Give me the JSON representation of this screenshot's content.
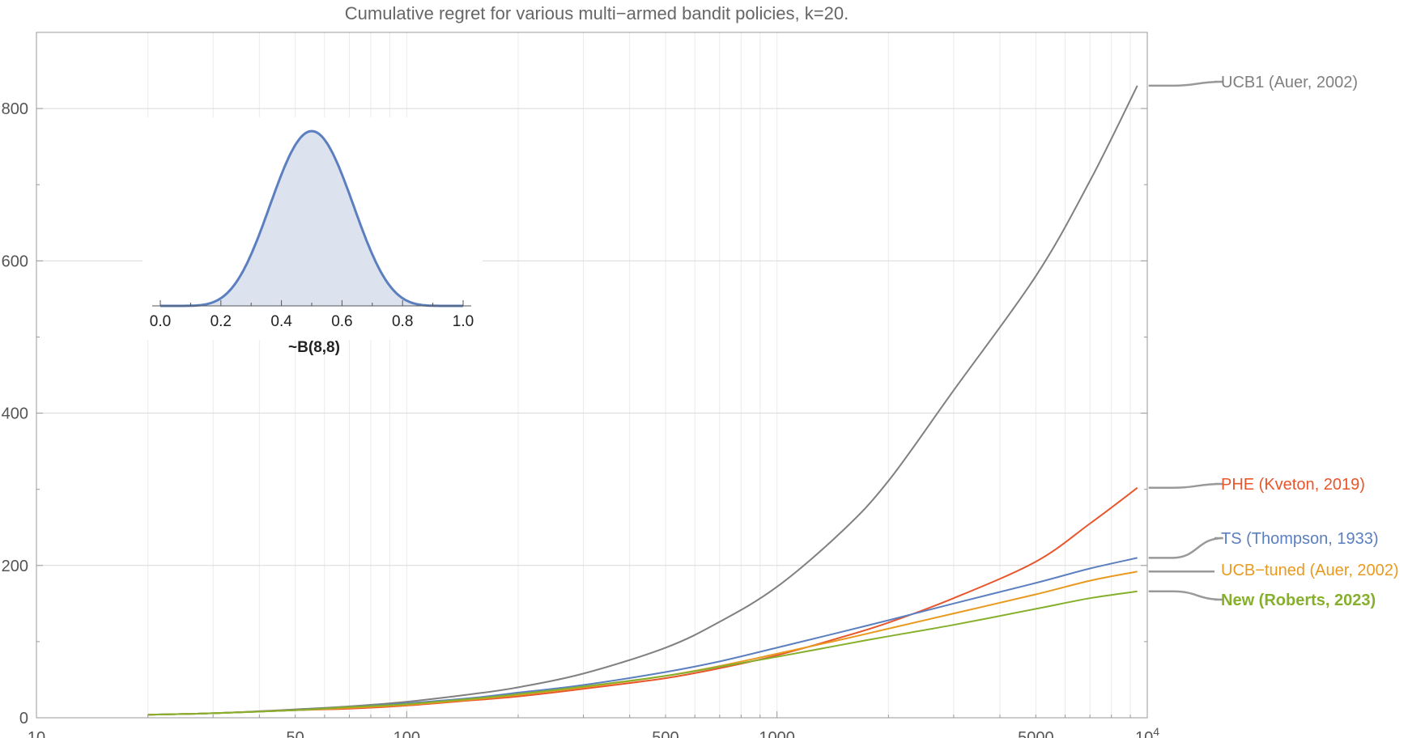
{
  "chart_data": {
    "type": "line",
    "title": "Cumulative regret for various multi−armed bandit policies, k=20.",
    "xlabel": "",
    "ylabel": "",
    "x_scale": "log",
    "xlim": [
      10,
      10000
    ],
    "ylim": [
      0,
      900
    ],
    "grid": true,
    "x_ticks": [
      {
        "value": 10,
        "label": "10"
      },
      {
        "value": 50,
        "label": "50"
      },
      {
        "value": 100,
        "label": "100"
      },
      {
        "value": 500,
        "label": "500"
      },
      {
        "value": 1000,
        "label": "1000"
      },
      {
        "value": 5000,
        "label": "5000"
      },
      {
        "value": 10000,
        "label": "10",
        "exp": "4"
      }
    ],
    "y_ticks": [
      {
        "value": 0,
        "label": "0"
      },
      {
        "value": 200,
        "label": "200"
      },
      {
        "value": 400,
        "label": "400"
      },
      {
        "value": 600,
        "label": "600"
      },
      {
        "value": 800,
        "label": "800"
      }
    ],
    "legend_placement": "right",
    "series": [
      {
        "name": "UCB1 (Auer, 2002)",
        "color": "#808080",
        "bold": false,
        "x": [
          20,
          30,
          50,
          70,
          100,
          150,
          200,
          300,
          500,
          700,
          1000,
          1500,
          2000,
          3000,
          5000,
          7000,
          9400
        ],
        "y": [
          4,
          6,
          11,
          15,
          21,
          31,
          40,
          58,
          92,
          126,
          172,
          245,
          311,
          430,
          580,
          705,
          830
        ]
      },
      {
        "name": "PHE (Kveton, 2019)",
        "color": "#e8562c",
        "bold": false,
        "x": [
          20,
          30,
          50,
          70,
          100,
          150,
          200,
          300,
          500,
          700,
          1000,
          1500,
          2000,
          3000,
          5000,
          7000,
          9400
        ],
        "y": [
          4,
          6,
          10,
          12,
          16,
          23,
          28,
          38,
          52,
          65,
          82,
          106,
          125,
          157,
          205,
          255,
          302
        ]
      },
      {
        "name": "TS (Thompson, 1933)",
        "color": "#5b7fbf",
        "bold": false,
        "x": [
          20,
          30,
          50,
          70,
          100,
          150,
          200,
          300,
          500,
          700,
          1000,
          1500,
          2000,
          3000,
          5000,
          7000,
          9400
        ],
        "y": [
          4,
          6,
          10,
          14,
          19,
          26,
          33,
          43,
          60,
          74,
          92,
          113,
          128,
          150,
          177,
          196,
          210
        ]
      },
      {
        "name": "UCB−tuned (Auer, 2002)",
        "color": "#e89a1f",
        "bold": false,
        "x": [
          20,
          30,
          50,
          70,
          100,
          150,
          200,
          300,
          500,
          700,
          1000,
          1500,
          2000,
          3000,
          5000,
          7000,
          9400
        ],
        "y": [
          4,
          6,
          10,
          13,
          17,
          24,
          30,
          40,
          55,
          68,
          84,
          103,
          117,
          137,
          162,
          180,
          192
        ]
      },
      {
        "name": "New (Roberts, 2023)",
        "color": "#86b02c",
        "bold": true,
        "x": [
          20,
          30,
          50,
          70,
          100,
          150,
          200,
          300,
          500,
          700,
          1000,
          1500,
          2000,
          3000,
          5000,
          7000,
          9400
        ],
        "y": [
          4,
          6,
          10,
          14,
          18,
          25,
          31,
          41,
          55,
          67,
          80,
          96,
          107,
          122,
          143,
          157,
          166
        ]
      }
    ],
    "inset": {
      "type": "area",
      "distribution": "Beta",
      "a": 8,
      "b": 8,
      "xlim": [
        0,
        1
      ],
      "label": "~B(8,8)",
      "color": "#5b7fbf",
      "fill": "#dde3ee",
      "x_ticks": [
        {
          "value": 0.0,
          "label": "0.0"
        },
        {
          "value": 0.2,
          "label": "0.2"
        },
        {
          "value": 0.4,
          "label": "0.4"
        },
        {
          "value": 0.6,
          "label": "0.6"
        },
        {
          "value": 0.8,
          "label": "0.8"
        },
        {
          "value": 1.0,
          "label": "1.0"
        }
      ]
    }
  }
}
